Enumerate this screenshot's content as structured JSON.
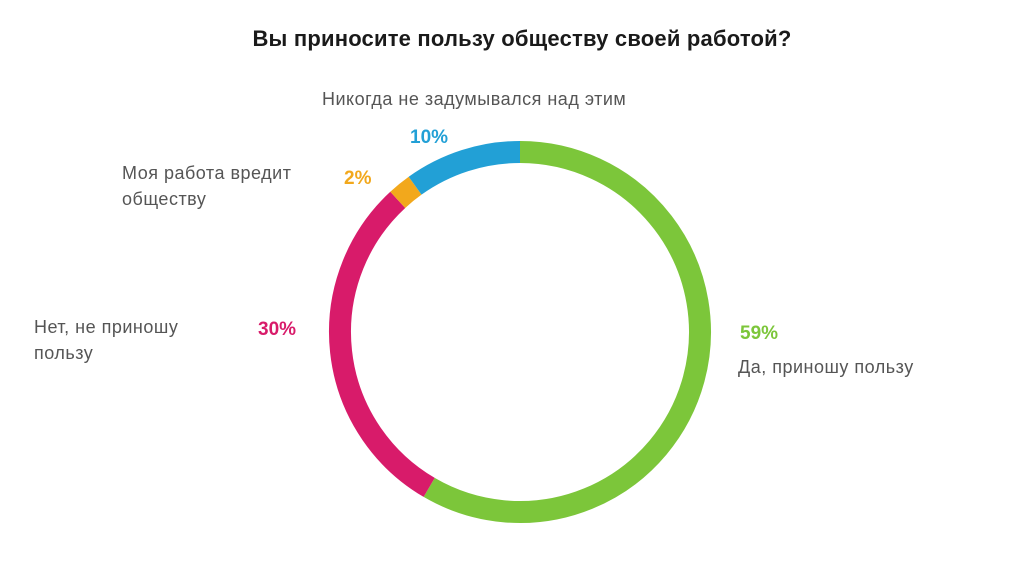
{
  "chart_data": {
    "type": "pie",
    "title": "Вы приносите пользу обществу своей работой?",
    "slices": [
      {
        "label": "Да, приношу пользу",
        "value": 59,
        "value_label": "59%",
        "color": "#7cc63a"
      },
      {
        "label": "Нет, не приношу пользу",
        "value": 30,
        "value_label": "30%",
        "color": "#d81b6a"
      },
      {
        "label": "Моя работа вредит обществу",
        "value": 2,
        "value_label": "2%",
        "color": "#f2a81c"
      },
      {
        "label": "Никогда не задумывался над этим",
        "value": 10,
        "value_label": "10%",
        "color": "#22a0d6"
      }
    ],
    "style": "ring",
    "start": "top",
    "direction": "clockwise"
  }
}
